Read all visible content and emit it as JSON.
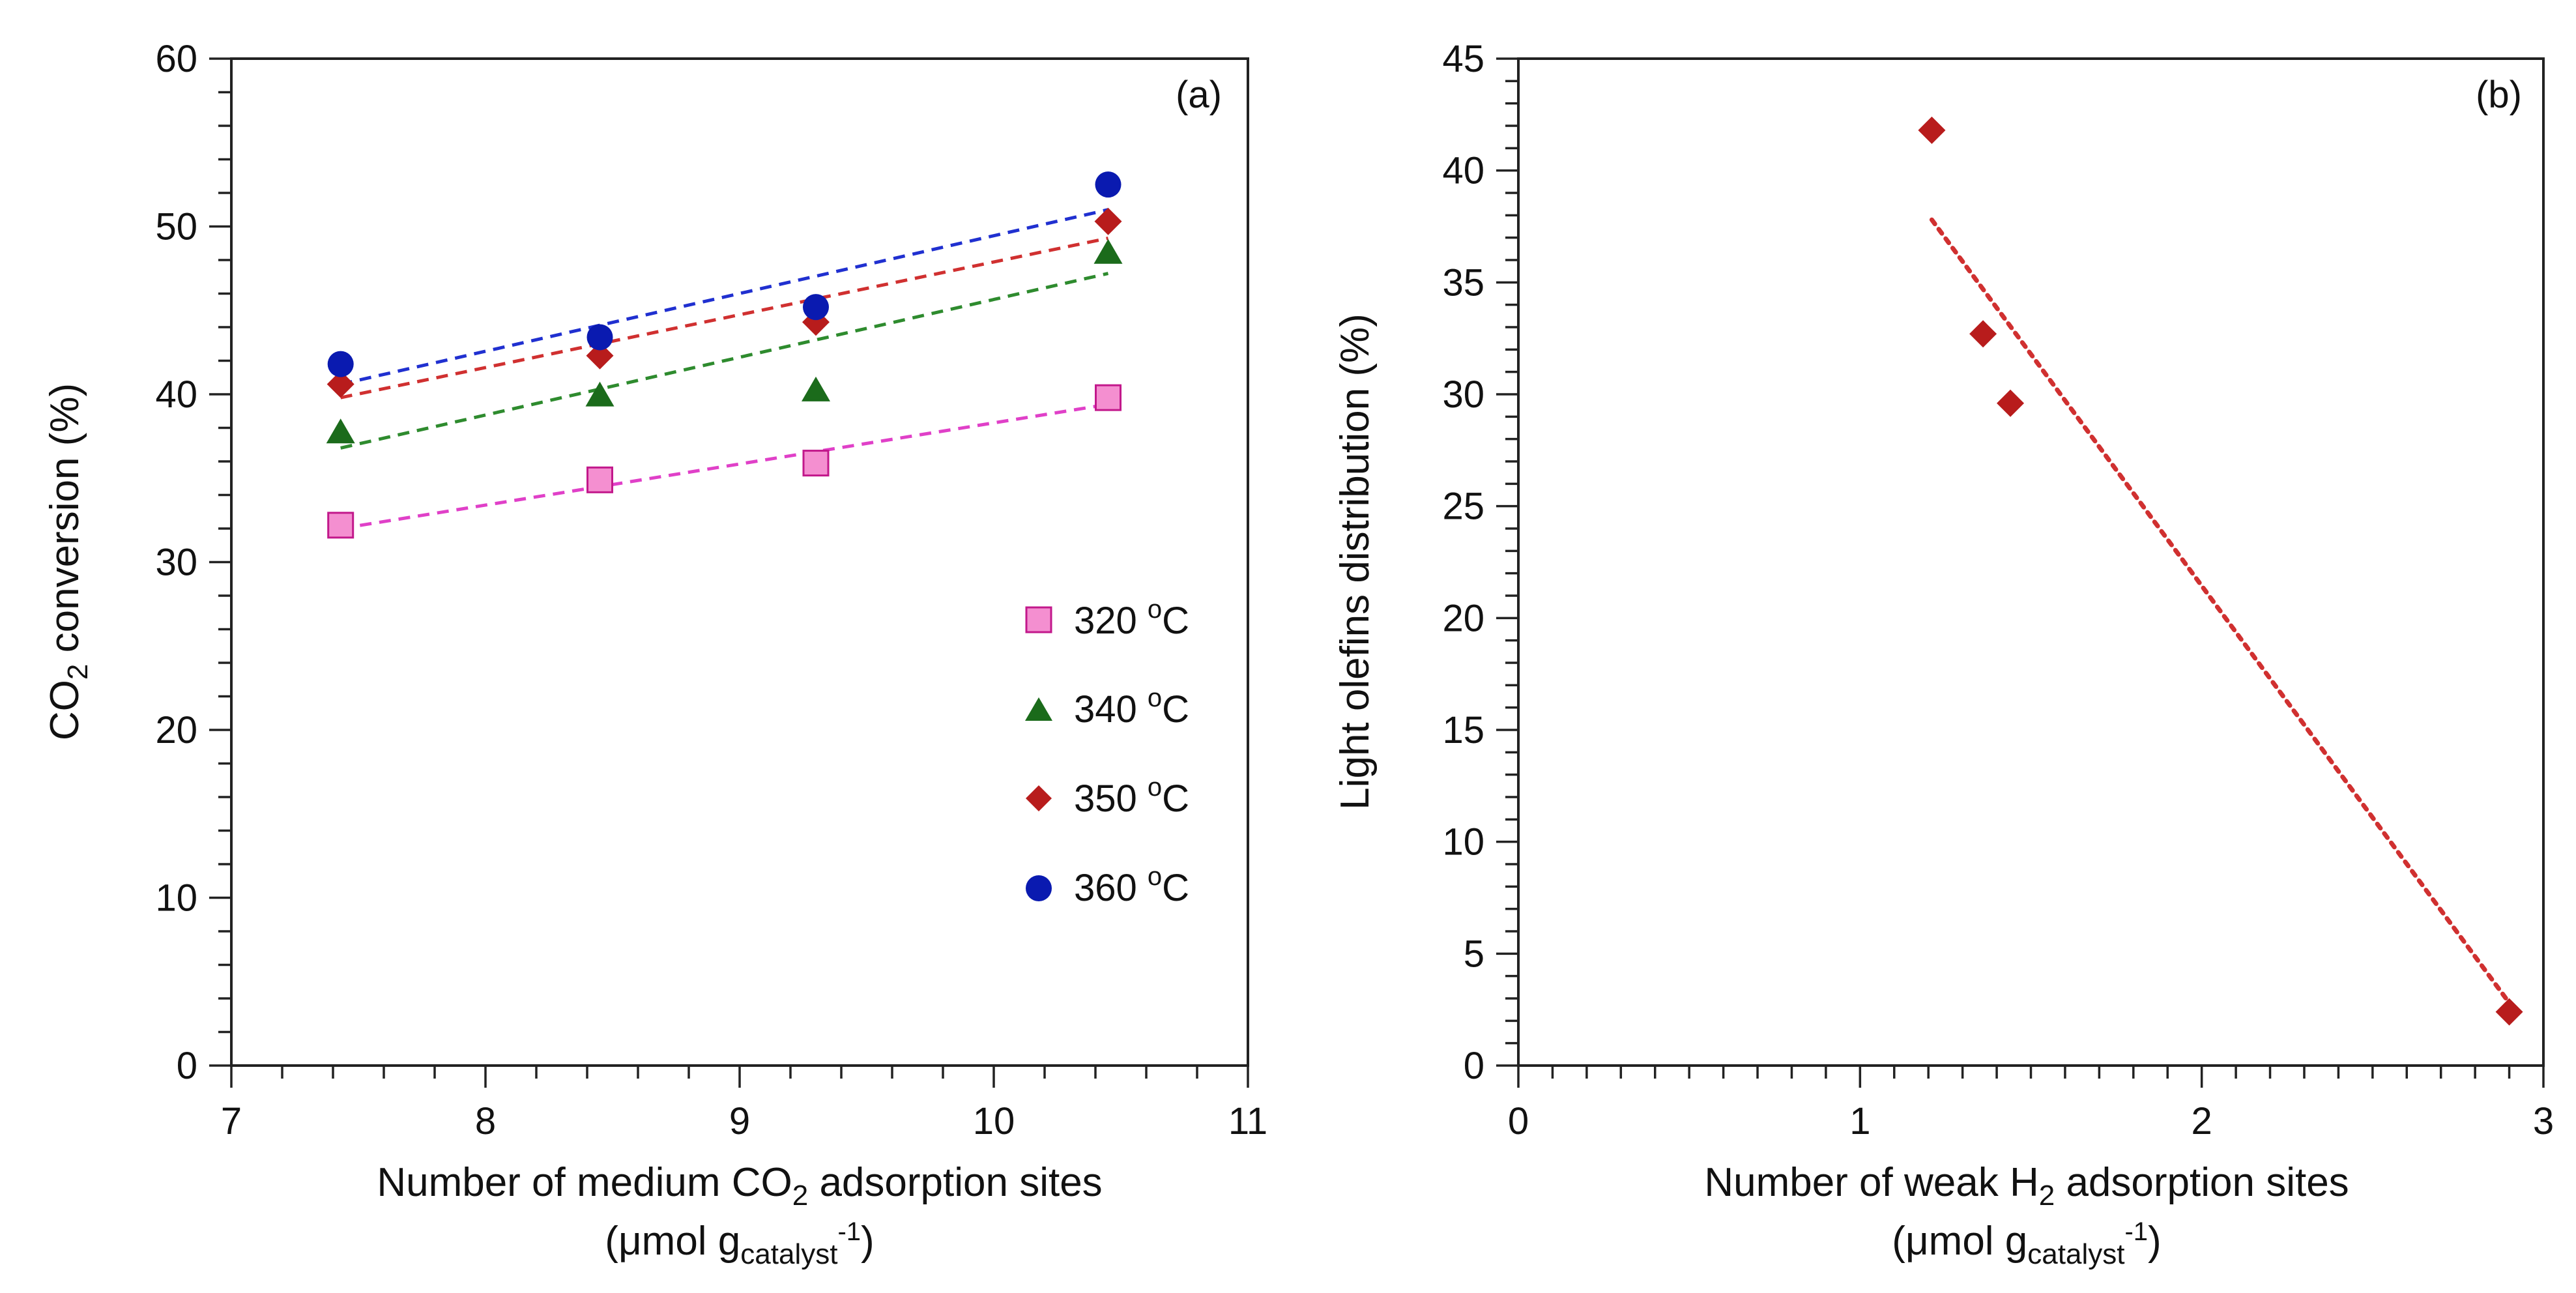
{
  "chart_data": [
    {
      "panel": "(a)",
      "type": "scatter",
      "x_ticks": [
        "7",
        "8",
        "9",
        "10",
        "11"
      ],
      "y_ticks": [
        "0",
        "10",
        "20",
        "30",
        "40",
        "50",
        "60"
      ],
      "xlim": [
        7,
        11
      ],
      "ylim": [
        0,
        60
      ],
      "ylabel_parts": [
        "CO",
        "2",
        " conversion (%)"
      ],
      "xlabel_line1_parts": [
        "Number of medium CO",
        "2",
        " adsorption sites"
      ],
      "xlabel_line2_parts": [
        "(μmol g",
        "catalyst",
        "-1",
        ")"
      ],
      "legend_position": "right",
      "trendlines": "dashed linear fits",
      "series": [
        {
          "name": "320 °C",
          "label_num": "320 ",
          "label_sup": "o",
          "label_unit": "C",
          "marker": "square",
          "color": "#f48fd0",
          "stroke": "#c2188b",
          "line_color": "#e040c8",
          "x": [
            7.43,
            8.45,
            9.3,
            10.45
          ],
          "y": [
            32.2,
            34.9,
            35.9,
            39.8
          ],
          "fit": [
            [
              7.43,
              32.0
            ],
            [
              10.45,
              39.4
            ]
          ]
        },
        {
          "name": "340 °C",
          "label_num": "340 ",
          "label_sup": "o",
          "label_unit": "C",
          "marker": "triangle",
          "color": "#1b6b1b",
          "stroke": "#1b6b1b",
          "line_color": "#2e8b2e",
          "x": [
            7.43,
            8.45,
            9.3,
            10.45
          ],
          "y": [
            37.7,
            39.9,
            40.2,
            48.4
          ],
          "fit": [
            [
              7.43,
              36.8
            ],
            [
              10.45,
              47.2
            ]
          ]
        },
        {
          "name": "350 °C",
          "label_num": "350 ",
          "label_sup": "o",
          "label_unit": "C",
          "marker": "diamond",
          "color": "#b81c1c",
          "stroke": "#b81c1c",
          "line_color": "#d03030",
          "x": [
            7.43,
            8.45,
            9.3,
            10.45
          ],
          "y": [
            40.6,
            42.3,
            44.3,
            50.3
          ],
          "fit": [
            [
              7.43,
              39.8
            ],
            [
              10.45,
              49.3
            ]
          ]
        },
        {
          "name": "360 °C",
          "label_num": "360 ",
          "label_sup": "o",
          "label_unit": "C",
          "marker": "circle",
          "color": "#0a1ab0",
          "stroke": "#0a1ab0",
          "line_color": "#2030d0",
          "x": [
            7.43,
            8.45,
            9.3,
            10.45
          ],
          "y": [
            41.8,
            43.4,
            45.2,
            52.5
          ],
          "fit": [
            [
              7.43,
              40.6
            ],
            [
              10.45,
              51.0
            ]
          ]
        }
      ]
    },
    {
      "panel": "(b)",
      "type": "scatter",
      "x_ticks": [
        "0",
        "1",
        "2",
        "3"
      ],
      "y_ticks": [
        "0",
        "5",
        "10",
        "15",
        "20",
        "25",
        "30",
        "35",
        "40",
        "45"
      ],
      "xlim": [
        0,
        3
      ],
      "ylim": [
        0,
        45
      ],
      "ylabel": "Light olefins distribution (%)",
      "xlabel_line1_parts": [
        "Number of weak H",
        "2",
        " adsorption sites"
      ],
      "xlabel_line2_parts": [
        "(μmol g",
        "catalyst",
        "-1",
        ")"
      ],
      "trendlines": "dotted linear fit",
      "series": [
        {
          "name": "light olefins",
          "marker": "diamond",
          "color": "#b81c1c",
          "stroke": "#b81c1c",
          "line_color": "#d03030",
          "x": [
            1.21,
            1.36,
            1.44,
            2.9
          ],
          "y": [
            41.8,
            32.7,
            29.6,
            2.4
          ],
          "fit": [
            [
              1.21,
              37.8
            ],
            [
              2.9,
              2.8
            ]
          ]
        }
      ]
    }
  ]
}
